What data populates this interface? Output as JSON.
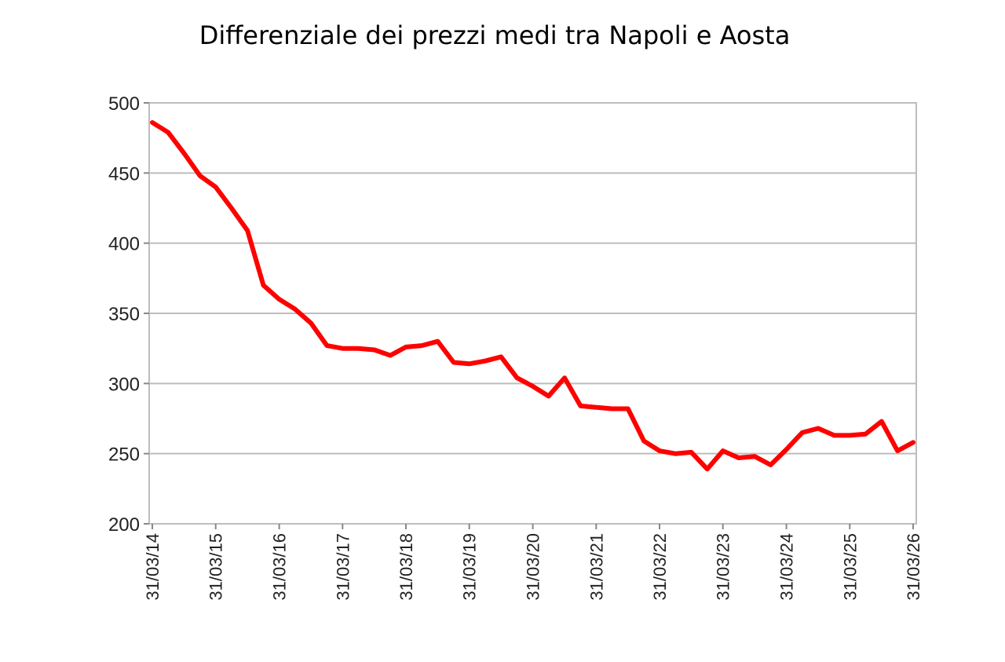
{
  "chart_data": {
    "type": "line",
    "title": "Differenziale dei prezzi medi tra Napoli e Aosta",
    "xlabel": "",
    "ylabel": "",
    "ylim": [
      200,
      500
    ],
    "yticks": [
      "200",
      "250",
      "300",
      "350",
      "400",
      "450",
      "500"
    ],
    "xticks": [
      "31/03/14",
      "31/03/15",
      "31/03/16",
      "31/03/17",
      "31/03/18",
      "31/03/19",
      "31/03/20",
      "31/03/21",
      "31/03/22",
      "31/03/23",
      "31/03/24",
      "31/03/25",
      "31/03/26"
    ],
    "grid": true,
    "legend": "none",
    "series": [
      {
        "color": "#ff0000",
        "x": [
          "2014-03-31",
          "2014-06-30",
          "2014-09-30",
          "2014-12-31",
          "2015-03-31",
          "2015-06-30",
          "2015-09-30",
          "2015-12-31",
          "2016-03-31",
          "2016-06-30",
          "2016-09-30",
          "2016-12-31",
          "2017-03-31",
          "2017-06-30",
          "2017-09-30",
          "2017-12-31",
          "2018-03-31",
          "2018-06-30",
          "2018-09-30",
          "2018-12-31",
          "2019-03-31",
          "2019-06-30",
          "2019-09-30",
          "2019-12-31",
          "2020-03-31",
          "2020-06-30",
          "2020-09-30",
          "2020-12-31",
          "2021-03-31",
          "2021-06-30",
          "2021-09-30",
          "2021-12-31",
          "2022-03-31",
          "2022-06-30",
          "2022-09-30",
          "2022-12-31",
          "2023-03-31",
          "2023-06-30",
          "2023-09-30",
          "2023-12-31",
          "2024-03-31",
          "2024-06-30",
          "2024-09-30",
          "2024-12-31",
          "2025-03-31",
          "2025-06-30",
          "2025-09-30",
          "2025-12-31",
          "2026-03-31"
        ],
        "values": [
          486,
          479,
          464,
          448,
          440,
          425,
          409,
          370,
          360,
          353,
          343,
          327,
          325,
          325,
          324,
          320,
          326,
          327,
          330,
          315,
          314,
          316,
          319,
          304,
          298,
          291,
          304,
          284,
          283,
          282,
          282,
          259,
          252,
          250,
          251,
          239,
          252,
          247,
          248,
          242,
          253,
          265,
          268,
          263,
          263,
          264,
          273,
          252,
          258
        ]
      }
    ]
  }
}
